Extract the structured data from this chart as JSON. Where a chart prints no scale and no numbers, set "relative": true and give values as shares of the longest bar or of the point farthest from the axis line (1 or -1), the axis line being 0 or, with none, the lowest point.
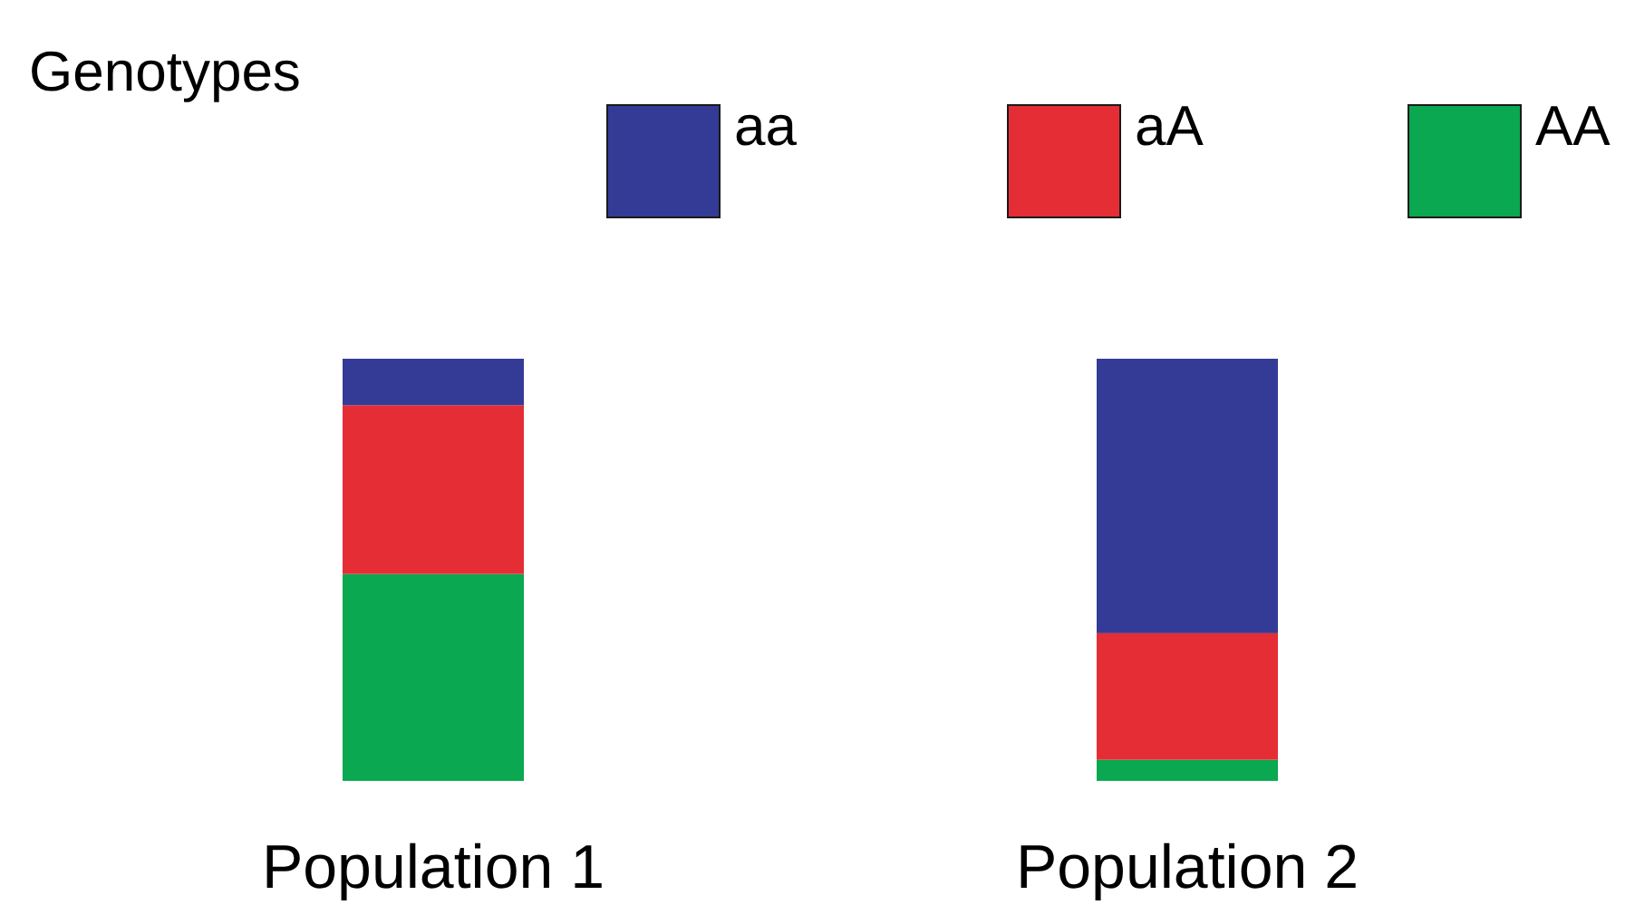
{
  "chart_data": {
    "type": "bar",
    "stacked": true,
    "relative": true,
    "legend_title": "Genotypes",
    "legend": "top",
    "grid": false,
    "categories": [
      "Population 1",
      "Population 2"
    ],
    "series": [
      {
        "name": "AA",
        "color": "#0aa850",
        "values": [
          0.49,
          0.05
        ]
      },
      {
        "name": "aA",
        "color": "#e52d35",
        "values": [
          0.4,
          0.3
        ]
      },
      {
        "name": "aa",
        "color": "#333b96",
        "values": [
          0.11,
          0.65
        ]
      }
    ]
  }
}
